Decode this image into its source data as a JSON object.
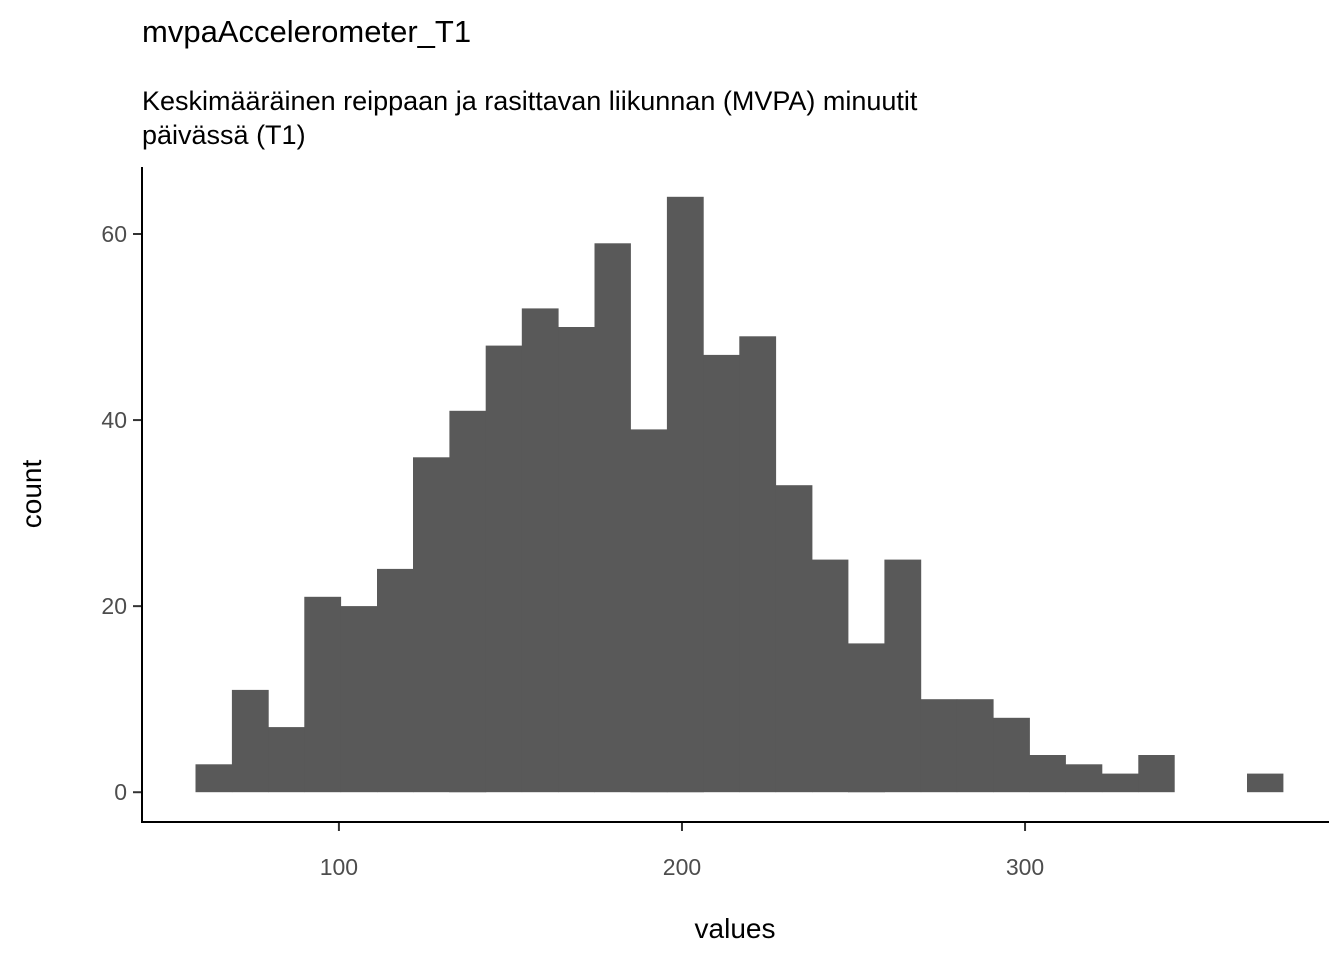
{
  "chart_data": {
    "type": "bar",
    "title": "mvpaAccelerometer_T1",
    "subtitle_lines": [
      "Keskimääräinen reippaan ja rasittavan liikunnan (MVPA) minuutit",
      "päivässä (T1)"
    ],
    "xlabel": "values",
    "ylabel": "count",
    "xlim": [
      42.6,
      388.6
    ],
    "ylim": [
      -3.2,
      67.2
    ],
    "x_ticks": [
      100,
      200,
      300
    ],
    "y_ticks": [
      0,
      20,
      40,
      60
    ],
    "bar_color": "#595959",
    "bins": [
      {
        "x0": 58.2,
        "x1": 68.8,
        "count": 3
      },
      {
        "x0": 68.8,
        "x1": 79.4,
        "count": 11
      },
      {
        "x0": 79.4,
        "x1": 89.9,
        "count": 7
      },
      {
        "x0": 89.9,
        "x1": 100.5,
        "count": 21
      },
      {
        "x0": 100.5,
        "x1": 111.1,
        "count": 20
      },
      {
        "x0": 111.1,
        "x1": 121.6,
        "count": 24
      },
      {
        "x0": 121.6,
        "x1": 132.2,
        "count": 36
      },
      {
        "x0": 132.2,
        "x1": 142.8,
        "count": 41
      },
      {
        "x0": 142.8,
        "x1": 153.3,
        "count": 48
      },
      {
        "x0": 153.3,
        "x1": 163.9,
        "count": 52
      },
      {
        "x0": 163.9,
        "x1": 174.5,
        "count": 50
      },
      {
        "x0": 174.5,
        "x1": 185.0,
        "count": 59
      },
      {
        "x0": 185.0,
        "x1": 195.6,
        "count": 39
      },
      {
        "x0": 195.6,
        "x1": 206.2,
        "count": 64
      },
      {
        "x0": 206.2,
        "x1": 216.7,
        "count": 47
      },
      {
        "x0": 216.7,
        "x1": 227.3,
        "count": 49
      },
      {
        "x0": 227.3,
        "x1": 237.9,
        "count": 33
      },
      {
        "x0": 237.9,
        "x1": 248.4,
        "count": 25
      },
      {
        "x0": 248.4,
        "x1": 259.0,
        "count": 16
      },
      {
        "x0": 259.0,
        "x1": 269.6,
        "count": 25
      },
      {
        "x0": 269.6,
        "x1": 280.1,
        "count": 10
      },
      {
        "x0": 280.1,
        "x1": 290.7,
        "count": 10
      },
      {
        "x0": 290.7,
        "x1": 301.3,
        "count": 8
      },
      {
        "x0": 301.3,
        "x1": 311.8,
        "count": 4
      },
      {
        "x0": 311.8,
        "x1": 322.4,
        "count": 3
      },
      {
        "x0": 322.4,
        "x1": 333.0,
        "count": 2
      },
      {
        "x0": 333.0,
        "x1": 343.5,
        "count": 4
      },
      {
        "x0": 343.5,
        "x1": 354.1,
        "count": 0
      },
      {
        "x0": 354.1,
        "x1": 364.7,
        "count": 0
      },
      {
        "x0": 364.7,
        "x1": 375.2,
        "count": 2
      }
    ]
  }
}
